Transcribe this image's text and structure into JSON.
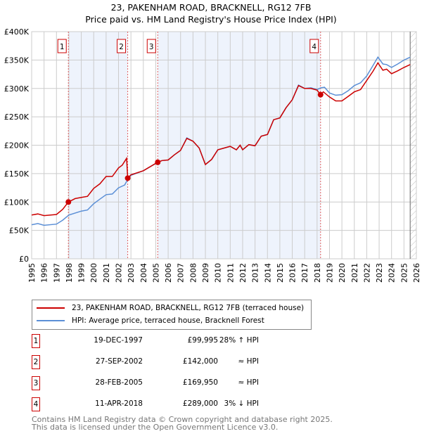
{
  "title": "23, PAKENHAM ROAD, BRACKNELL, RG12 7FB",
  "subtitle": "Price paid vs. HM Land Registry's House Price Index (HPI)",
  "chart_data": {
    "type": "line",
    "title": "23, PAKENHAM ROAD, BRACKNELL, RG12 7FB",
    "subtitle": "Price paid vs. HM Land Registry's House Price Index (HPI)",
    "xlim": [
      1995,
      2026
    ],
    "ylim": [
      0,
      400000
    ],
    "x_ticks": [
      "1995",
      "1996",
      "1997",
      "1998",
      "1999",
      "2000",
      "2001",
      "2002",
      "2003",
      "2004",
      "2005",
      "2006",
      "2007",
      "2008",
      "2009",
      "2010",
      "2011",
      "2012",
      "2013",
      "2014",
      "2015",
      "2016",
      "2017",
      "2018",
      "2019",
      "2020",
      "2021",
      "2022",
      "2023",
      "2024",
      "2025",
      "2026"
    ],
    "y_ticks": [
      {
        "value": 0,
        "label": "£0"
      },
      {
        "value": 50000,
        "label": "£50K"
      },
      {
        "value": 100000,
        "label": "£100K"
      },
      {
        "value": 150000,
        "label": "£150K"
      },
      {
        "value": 200000,
        "label": "£200K"
      },
      {
        "value": 250000,
        "label": "£250K"
      },
      {
        "value": 300000,
        "label": "£300K"
      },
      {
        "value": 350000,
        "label": "£350K"
      },
      {
        "value": 400000,
        "label": "£400K"
      }
    ],
    "grid": true,
    "shaded_periods": [
      [
        1997.96,
        2002.74
      ],
      [
        2005.16,
        2018.28
      ]
    ],
    "forecast_hatch_from": 2025.5,
    "colors": {
      "property": "#cc0000",
      "hpi": "#5b8fd6",
      "shade": "#eef3fc",
      "marker_line": "#e06060"
    },
    "series": [
      {
        "name": "23, PAKENHAM ROAD, BRACKNELL, RG12 7FB (terraced house)",
        "color": "#cc0000",
        "points": [
          [
            1995,
            77000
          ],
          [
            1995.5,
            79000
          ],
          [
            1996,
            76000
          ],
          [
            1997,
            78000
          ],
          [
            1997.5,
            87000
          ],
          [
            1997.96,
            99995
          ],
          [
            1998.5,
            106000
          ],
          [
            1999,
            108000
          ],
          [
            1999.5,
            110000
          ],
          [
            2000,
            124000
          ],
          [
            2000.5,
            132000
          ],
          [
            2001,
            145000
          ],
          [
            2001.5,
            145000
          ],
          [
            2002,
            160000
          ],
          [
            2002.3,
            165000
          ],
          [
            2002.65,
            177000
          ],
          [
            2002.74,
            142000
          ],
          [
            2003,
            148000
          ],
          [
            2004,
            155000
          ],
          [
            2005,
            168000
          ],
          [
            2005.16,
            169950
          ],
          [
            2005.5,
            173000
          ],
          [
            2006,
            174000
          ],
          [
            2006.5,
            183000
          ],
          [
            2007,
            191000
          ],
          [
            2007.5,
            212000
          ],
          [
            2008,
            207000
          ],
          [
            2008.5,
            195000
          ],
          [
            2009,
            166000
          ],
          [
            2009.5,
            175000
          ],
          [
            2010,
            192000
          ],
          [
            2011,
            198000
          ],
          [
            2011.5,
            192000
          ],
          [
            2011.8,
            200000
          ],
          [
            2012,
            192000
          ],
          [
            2012.5,
            201000
          ],
          [
            2013,
            199000
          ],
          [
            2013.5,
            216000
          ],
          [
            2014,
            219000
          ],
          [
            2014.5,
            245000
          ],
          [
            2015,
            248000
          ],
          [
            2015.5,
            266000
          ],
          [
            2016,
            280000
          ],
          [
            2016.5,
            305000
          ],
          [
            2017,
            300000
          ],
          [
            2017.5,
            300000
          ],
          [
            2018,
            297000
          ],
          [
            2018.28,
            289000
          ],
          [
            2018.5,
            294000
          ],
          [
            2019,
            285000
          ],
          [
            2019.5,
            278000
          ],
          [
            2020,
            278000
          ],
          [
            2020.5,
            286000
          ],
          [
            2021,
            294000
          ],
          [
            2021.5,
            298000
          ],
          [
            2022,
            314000
          ],
          [
            2022.5,
            330000
          ],
          [
            2022.9,
            345000
          ],
          [
            2023.3,
            332000
          ],
          [
            2023.6,
            334000
          ],
          [
            2024,
            326000
          ],
          [
            2024.5,
            331000
          ],
          [
            2025,
            337000
          ],
          [
            2025.5,
            342000
          ]
        ]
      },
      {
        "name": "HPI: Average price, terraced house, Bracknell Forest",
        "color": "#5b8fd6",
        "points": [
          [
            1995,
            60000
          ],
          [
            1995.5,
            62000
          ],
          [
            1996,
            59000
          ],
          [
            1997,
            61000
          ],
          [
            1997.5,
            68000
          ],
          [
            1998,
            77000
          ],
          [
            1999,
            84000
          ],
          [
            1999.5,
            86000
          ],
          [
            2000,
            97000
          ],
          [
            2000.5,
            105000
          ],
          [
            2001,
            113000
          ],
          [
            2001.5,
            114000
          ],
          [
            2002,
            125000
          ],
          [
            2002.5,
            130000
          ],
          [
            2002.74,
            140000
          ],
          [
            2003,
            147000
          ],
          [
            2004,
            155000
          ],
          [
            2005,
            168000
          ],
          [
            2005.5,
            173000
          ],
          [
            2006,
            174000
          ],
          [
            2006.5,
            183000
          ],
          [
            2007,
            191000
          ],
          [
            2007.5,
            213000
          ],
          [
            2008,
            207000
          ],
          [
            2008.5,
            195000
          ],
          [
            2009,
            166000
          ],
          [
            2009.5,
            175000
          ],
          [
            2010,
            192000
          ],
          [
            2011,
            198000
          ],
          [
            2011.5,
            192000
          ],
          [
            2011.8,
            200000
          ],
          [
            2012,
            192000
          ],
          [
            2012.5,
            201000
          ],
          [
            2013,
            199000
          ],
          [
            2013.5,
            216000
          ],
          [
            2014,
            219000
          ],
          [
            2014.5,
            245000
          ],
          [
            2015,
            248000
          ],
          [
            2015.5,
            266000
          ],
          [
            2016,
            280000
          ],
          [
            2016.5,
            306000
          ],
          [
            2017,
            300000
          ],
          [
            2017.5,
            301000
          ],
          [
            2018,
            298000
          ],
          [
            2018.3,
            301000
          ],
          [
            2018.6,
            302000
          ],
          [
            2019,
            292000
          ],
          [
            2019.5,
            288000
          ],
          [
            2020,
            289000
          ],
          [
            2020.5,
            296000
          ],
          [
            2021,
            305000
          ],
          [
            2021.5,
            310000
          ],
          [
            2022,
            322000
          ],
          [
            2022.5,
            340000
          ],
          [
            2022.9,
            355000
          ],
          [
            2023.3,
            343000
          ],
          [
            2023.6,
            342000
          ],
          [
            2024,
            337000
          ],
          [
            2024.5,
            343000
          ],
          [
            2025,
            350000
          ],
          [
            2025.5,
            355000
          ]
        ]
      }
    ],
    "sales": [
      {
        "n": "1",
        "x": 1997.96,
        "value": 99995
      },
      {
        "n": "2",
        "x": 2002.74,
        "value": 142000
      },
      {
        "n": "3",
        "x": 2005.16,
        "value": 169950
      },
      {
        "n": "4",
        "x": 2018.28,
        "value": 289000
      }
    ]
  },
  "legend": {
    "property": "23, PAKENHAM ROAD, BRACKNELL, RG12 7FB (terraced house)",
    "hpi": "HPI: Average price, terraced house, Bracknell Forest"
  },
  "transactions": [
    {
      "n": "1",
      "date": "19-DEC-1997",
      "price": "£99,995",
      "relation": "28% ↑ HPI"
    },
    {
      "n": "2",
      "date": "27-SEP-2002",
      "price": "£142,000",
      "relation": "≈ HPI"
    },
    {
      "n": "3",
      "date": "28-FEB-2005",
      "price": "£169,950",
      "relation": "≈ HPI"
    },
    {
      "n": "4",
      "date": "11-APR-2018",
      "price": "£289,000",
      "relation": "3% ↓ HPI"
    }
  ],
  "footer": {
    "line1": "Contains HM Land Registry data © Crown copyright and database right 2025.",
    "line2": "This data is licensed under the Open Government Licence v3.0."
  }
}
